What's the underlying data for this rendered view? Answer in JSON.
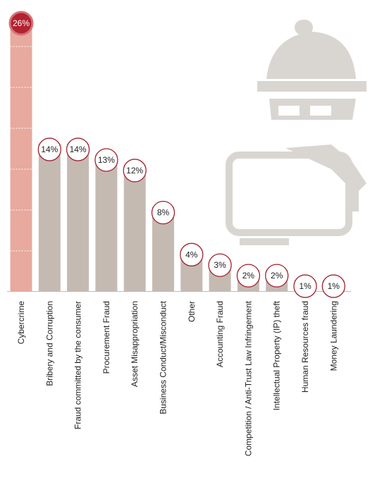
{
  "chart_data": {
    "type": "bar",
    "categories": [
      "Cybercrime",
      "Bribery and Corruption",
      "Fraud committed by the consumer",
      "Procurement Fraud",
      "Asset Misappropriation",
      "Business Conduct/Misconduct",
      "Other",
      "Accounting Fraud",
      "Competition / Anti-Trust Law Infringement",
      "Intellectual Property (IP) theft",
      "Human Resources fraud",
      "Money Laundering"
    ],
    "values": [
      26,
      14,
      14,
      13,
      12,
      8,
      4,
      3,
      2,
      2,
      1,
      1
    ],
    "value_labels": [
      "26%",
      "14%",
      "14%",
      "13%",
      "12%",
      "8%",
      "4%",
      "3%",
      "2%",
      "2%",
      "1%",
      "1%"
    ],
    "colors": [
      "#e8a99e",
      "#c5bab2",
      "#c5bab2",
      "#c5bab2",
      "#c5bab2",
      "#c5bab2",
      "#c5bab2",
      "#c5bab2",
      "#c5bab2",
      "#c5bab2",
      "#c5bab2",
      "#c5bab2"
    ],
    "highlight_color": "#e8a99e"
  }
}
